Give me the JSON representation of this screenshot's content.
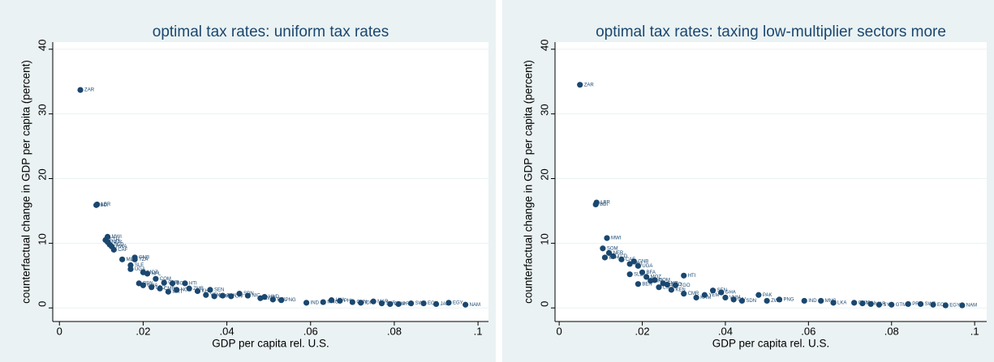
{
  "chart_data": [
    {
      "type": "scatter",
      "title": "optimal tax rates: uniform tax rates",
      "x_label": "GDP per capita rel. U.S.",
      "y_label": "counterfactual change in GDP per capita (percent)",
      "color": "#1a476f",
      "grid": true,
      "xlim": [
        -0.0016,
        0.1025
      ],
      "ylim": [
        -2.1,
        41.1
      ],
      "xticks": [
        0,
        {
          "value": 0.02,
          "label": ".02"
        },
        {
          "value": 0.04,
          "label": ".04"
        },
        {
          "value": 0.06,
          "label": ".06"
        },
        {
          "value": 0.08,
          "label": ".08"
        },
        {
          "value": 0.1,
          "label": ".1"
        }
      ],
      "yticks": [
        0,
        10,
        20,
        30,
        40
      ],
      "x": [
        0.005,
        0.009,
        0.0088,
        0.0115,
        0.011,
        0.0115,
        0.012,
        0.0125,
        0.013,
        0.015,
        0.018,
        0.018,
        0.017,
        0.017,
        0.02,
        0.021,
        0.023,
        0.019,
        0.02,
        0.025,
        0.027,
        0.022,
        0.024,
        0.026,
        0.03,
        0.031,
        0.028,
        0.033,
        0.035,
        0.036,
        0.037,
        0.039,
        0.041,
        0.043,
        0.045,
        0.048,
        0.049,
        0.051,
        0.053,
        0.059,
        0.063,
        0.065,
        0.067,
        0.07,
        0.072,
        0.075,
        0.077,
        0.079,
        0.081,
        0.084,
        0.087,
        0.09,
        0.093,
        0.097
      ],
      "values": [
        33.7,
        16,
        15.9,
        11,
        10.5,
        10.2,
        9.8,
        9.5,
        9,
        7.5,
        7.8,
        7.5,
        6.6,
        6,
        5.5,
        5.3,
        4.5,
        3.8,
        3.5,
        3.9,
        3.8,
        3.2,
        3,
        2.5,
        3.8,
        3,
        2.8,
        2.6,
        2,
        2.8,
        1.8,
        1.9,
        1.8,
        2.2,
        1.9,
        1.5,
        1.7,
        1.3,
        1.2,
        0.8,
        0.9,
        1.2,
        1.1,
        0.9,
        0.8,
        1,
        0.7,
        0.6,
        0.6,
        0.7,
        0.7,
        0.6,
        0.8,
        0.5
      ],
      "point_labels": [
        "ZAR",
        "LBR",
        "BDI",
        "MWI",
        "ETH",
        "NER",
        "TCD",
        "RWA",
        "CAF",
        "MLI",
        "GNB",
        "TZA",
        "SLE",
        "UGA",
        "MOZ",
        "NPL",
        "COM",
        "BEN",
        "GHA",
        "GMB",
        "BGD",
        "LSO",
        "CMR",
        "MRT",
        "HTI",
        "ZMB",
        "NGA",
        "KHM",
        "YEM",
        "SEN",
        "VNM",
        "PAK",
        "CIV",
        "SDN",
        "NIC",
        "ZWE",
        "HND",
        "BOL",
        "PNG",
        "IND",
        "MNG",
        "LKA",
        "PHL",
        "CHN",
        "IDN",
        "MAR",
        "SYR",
        "GTM",
        "PRY",
        "SWZ",
        "ECU",
        "JAM",
        "EGY",
        "NAM"
      ]
    },
    {
      "type": "scatter",
      "title": "optimal tax rates: taxing low-multiplier sectors more",
      "x_label": "GDP per capita rel. U.S.",
      "y_label": "counterfactual change in GDP per capita (percent)",
      "color": "#1a476f",
      "grid": true,
      "xlim": [
        -0.001,
        0.1029
      ],
      "ylim": [
        -2.1,
        41.1
      ],
      "xticks": [
        0,
        {
          "value": 0.02,
          "label": ".02"
        },
        {
          "value": 0.04,
          "label": ".04"
        },
        {
          "value": 0.06,
          "label": ".06"
        },
        {
          "value": 0.08,
          "label": ".08"
        },
        {
          "value": 0.1,
          "label": ".1"
        }
      ],
      "yticks": [
        0,
        10,
        20,
        30,
        40
      ],
      "x": [
        0.005,
        0.009,
        0.0088,
        0.0115,
        0.0105,
        0.012,
        0.013,
        0.011,
        0.015,
        0.017,
        0.018,
        0.019,
        0.017,
        0.02,
        0.021,
        0.022,
        0.019,
        0.023,
        0.025,
        0.026,
        0.028,
        0.024,
        0.027,
        0.03,
        0.03,
        0.033,
        0.035,
        0.037,
        0.039,
        0.04,
        0.042,
        0.044,
        0.048,
        0.05,
        0.053,
        0.059,
        0.063,
        0.066,
        0.071,
        0.073,
        0.075,
        0.077,
        0.08,
        0.084,
        0.087,
        0.09,
        0.093,
        0.097
      ],
      "values": [
        34.5,
        16.3,
        16,
        10.8,
        9.2,
        8.5,
        8,
        7.8,
        7.5,
        6.8,
        7.2,
        6.5,
        5.2,
        5.5,
        4.8,
        4.2,
        3.7,
        4.3,
        3.8,
        3.6,
        3.5,
        3.2,
        2.8,
        5,
        2.2,
        1.6,
        2,
        2.7,
        2.4,
        1.6,
        1.3,
        1.1,
        2,
        1.1,
        1.3,
        1.1,
        1.1,
        0.8,
        0.8,
        0.7,
        0.6,
        0.5,
        0.5,
        0.6,
        0.6,
        0.5,
        0.4,
        0.4
      ],
      "point_labels": [
        "ZAR",
        "LBR",
        "BDI",
        "MWI",
        "SOM",
        "NER",
        "TCD",
        "ETH",
        "CAF",
        "MLI",
        "GNB",
        "UGA",
        "SLE",
        "BFA",
        "MOZ",
        "NPL",
        "BEN",
        "COM",
        "GMB",
        "BGD",
        "TGO",
        "LSO",
        "KEN",
        "HTI",
        "CMR",
        "KHM",
        "YEM",
        "SEN",
        "GHA",
        "VNM",
        "CIV",
        "SDN",
        "PAK",
        "ZWE",
        "PNG",
        "IND",
        "MNG",
        "LKA",
        "CHN",
        "IDN",
        "MAR",
        "SYR",
        "GTM",
        "PRY",
        "SWZ",
        "ECU",
        "EGY",
        "NAM"
      ]
    }
  ]
}
